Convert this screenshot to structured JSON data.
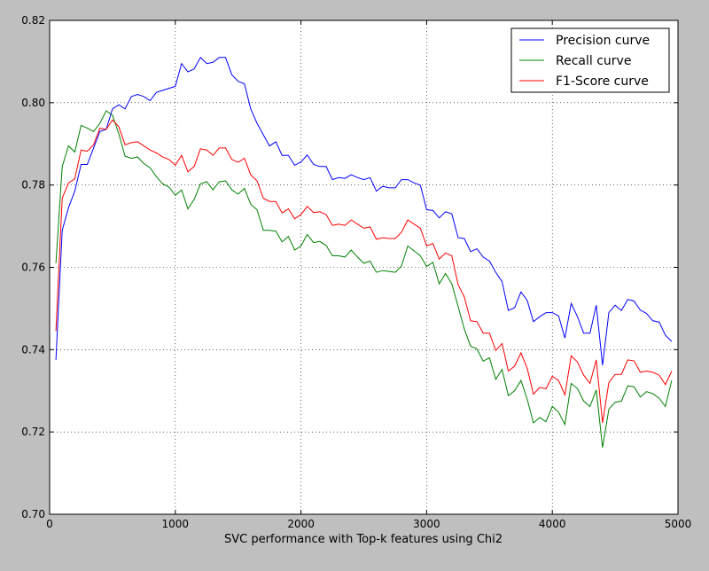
{
  "chart_data": {
    "type": "line",
    "title": "",
    "xlabel": "SVC performance with Top-k features using Chi2",
    "ylabel": "",
    "xlim": [
      0,
      5000
    ],
    "ylim": [
      0.7,
      0.82
    ],
    "x_ticks": [
      "0",
      "1000",
      "2000",
      "3000",
      "4000",
      "5000"
    ],
    "y_ticks": [
      "0.70",
      "0.72",
      "0.74",
      "0.76",
      "0.78",
      "0.80",
      "0.82"
    ],
    "grid": true,
    "legend_position": "top-right",
    "x": [
      50,
      100,
      150,
      200,
      250,
      300,
      350,
      400,
      450,
      500,
      550,
      600,
      650,
      700,
      750,
      800,
      850,
      900,
      950,
      1000,
      1050,
      1100,
      1150,
      1200,
      1250,
      1300,
      1350,
      1400,
      1450,
      1500,
      1550,
      1600,
      1650,
      1700,
      1750,
      1800,
      1850,
      1900,
      1950,
      2000,
      2050,
      2100,
      2150,
      2200,
      2250,
      2300,
      2350,
      2400,
      2450,
      2500,
      2550,
      2600,
      2650,
      2700,
      2750,
      2800,
      2850,
      2900,
      2950,
      3000,
      3050,
      3100,
      3150,
      3200,
      3250,
      3300,
      3350,
      3400,
      3450,
      3500,
      3550,
      3600,
      3650,
      3700,
      3750,
      3800,
      3850,
      3900,
      3950,
      4000,
      4050,
      4100,
      4150,
      4200,
      4250,
      4300,
      4350,
      4400,
      4450,
      4500,
      4550,
      4600,
      4650,
      4700,
      4750,
      4800,
      4850,
      4900,
      4950
    ],
    "series": [
      {
        "name": "Precision curve",
        "color": "#0000ff",
        "values": [
          0.7375,
          0.769,
          0.7745,
          0.7785,
          0.785,
          0.785,
          0.789,
          0.793,
          0.7935,
          0.7985,
          0.7995,
          0.7985,
          0.8015,
          0.802,
          0.8015,
          0.8005,
          0.8025,
          0.803,
          0.8035,
          0.804,
          0.8095,
          0.8075,
          0.8082,
          0.811,
          0.8095,
          0.8098,
          0.811,
          0.811,
          0.8068,
          0.8052,
          0.8046,
          0.7985,
          0.795,
          0.7922,
          0.7895,
          0.7905,
          0.7872,
          0.7872,
          0.7848,
          0.7856,
          0.7873,
          0.785,
          0.7845,
          0.7845,
          0.7813,
          0.7818,
          0.7816,
          0.7825,
          0.7818,
          0.7813,
          0.7818,
          0.7785,
          0.7797,
          0.7793,
          0.7793,
          0.7813,
          0.7813,
          0.7805,
          0.78,
          0.774,
          0.7738,
          0.772,
          0.7735,
          0.773,
          0.7672,
          0.767,
          0.7638,
          0.7645,
          0.7625,
          0.7615,
          0.7588,
          0.7565,
          0.7495,
          0.7502,
          0.754,
          0.752,
          0.7468,
          0.748,
          0.749,
          0.749,
          0.7482,
          0.7428,
          0.7512,
          0.748,
          0.744,
          0.744,
          0.7508,
          0.7362,
          0.749,
          0.7508,
          0.7495,
          0.7522,
          0.7518,
          0.7496,
          0.7488,
          0.747,
          0.7467,
          0.7435,
          0.742
        ]
      },
      {
        "name": "Recall curve",
        "color": "#008000",
        "values": [
          0.761,
          0.7845,
          0.7895,
          0.788,
          0.7945,
          0.7938,
          0.793,
          0.795,
          0.798,
          0.797,
          0.7925,
          0.787,
          0.7865,
          0.7868,
          0.7852,
          0.7842,
          0.782,
          0.7803,
          0.7795,
          0.7775,
          0.7788,
          0.7742,
          0.7765,
          0.7803,
          0.7808,
          0.7788,
          0.7808,
          0.781,
          0.7788,
          0.7778,
          0.7792,
          0.7753,
          0.774,
          0.769,
          0.769,
          0.7688,
          0.7662,
          0.7675,
          0.7642,
          0.7652,
          0.768,
          0.766,
          0.7663,
          0.7653,
          0.7628,
          0.7628,
          0.7625,
          0.7642,
          0.7625,
          0.761,
          0.7615,
          0.7588,
          0.7592,
          0.759,
          0.7588,
          0.7603,
          0.7652,
          0.764,
          0.7628,
          0.7602,
          0.7612,
          0.756,
          0.7585,
          0.756,
          0.7505,
          0.745,
          0.7408,
          0.7402,
          0.7372,
          0.738,
          0.7328,
          0.7352,
          0.7288,
          0.73,
          0.7325,
          0.728,
          0.7222,
          0.7235,
          0.7225,
          0.7262,
          0.7248,
          0.7218,
          0.7318,
          0.7305,
          0.7275,
          0.7262,
          0.7302,
          0.7162,
          0.7255,
          0.7272,
          0.7275,
          0.7312,
          0.731,
          0.7285,
          0.7298,
          0.7293,
          0.7282,
          0.7262,
          0.7325
        ]
      },
      {
        "name": "F1-Score curve",
        "color": "#ff0000",
        "values": [
          0.7445,
          0.7768,
          0.7805,
          0.7815,
          0.7885,
          0.7882,
          0.7898,
          0.7938,
          0.7935,
          0.7958,
          0.7942,
          0.7898,
          0.7903,
          0.7905,
          0.7895,
          0.7885,
          0.7878,
          0.7868,
          0.7862,
          0.7848,
          0.7872,
          0.7832,
          0.7845,
          0.7888,
          0.7885,
          0.7872,
          0.789,
          0.789,
          0.7862,
          0.7855,
          0.7865,
          0.7825,
          0.781,
          0.7768,
          0.776,
          0.776,
          0.7732,
          0.7742,
          0.7718,
          0.7728,
          0.7748,
          0.7733,
          0.7735,
          0.7728,
          0.7702,
          0.7705,
          0.7702,
          0.7715,
          0.7705,
          0.7695,
          0.7698,
          0.7668,
          0.7672,
          0.767,
          0.767,
          0.7685,
          0.7715,
          0.7705,
          0.7695,
          0.7652,
          0.7658,
          0.762,
          0.7635,
          0.7628,
          0.7558,
          0.7528,
          0.747,
          0.7468,
          0.744,
          0.744,
          0.7398,
          0.7415,
          0.7348,
          0.736,
          0.7392,
          0.7355,
          0.7292,
          0.7308,
          0.7305,
          0.7335,
          0.7325,
          0.729,
          0.7385,
          0.737,
          0.7338,
          0.7318,
          0.7375,
          0.7222,
          0.732,
          0.734,
          0.734,
          0.7375,
          0.7373,
          0.7345,
          0.7348,
          0.7345,
          0.7338,
          0.7315,
          0.7348
        ]
      }
    ]
  }
}
